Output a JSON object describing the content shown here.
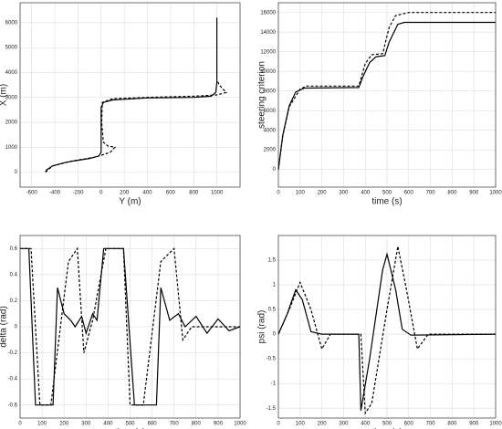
{
  "chart_data": [
    {
      "type": "line",
      "xlabel": "Y (m)",
      "ylabel": "X (m)",
      "xlim": [
        -700,
        1200
      ],
      "ylim": [
        -600,
        6800
      ],
      "xticks": [
        -600,
        -400,
        -200,
        0,
        200,
        400,
        600,
        800,
        1000
      ],
      "yticks": [
        0,
        1000,
        2000,
        3000,
        4000,
        5000,
        6000
      ],
      "grid": true,
      "series": [
        {
          "color": "#000000",
          "dashed": false,
          "x": [
            -480,
            -470,
            -420,
            -300,
            -100,
            -20,
            0,
            0,
            20,
            100,
            400,
            800,
            950,
            990,
            1000,
            1000
          ],
          "values": [
            0,
            100,
            250,
            400,
            550,
            650,
            800,
            2600,
            2800,
            2900,
            2980,
            3000,
            3050,
            3200,
            3600,
            6200
          ]
        },
        {
          "color": "#000000",
          "dashed": true,
          "x": [
            -480,
            -420,
            -250,
            -50,
            80,
            120,
            60,
            20,
            5,
            10,
            100,
            400,
            800,
            1000,
            1080,
            1020,
            1000
          ],
          "values": [
            0,
            250,
            450,
            600,
            800,
            1000,
            1050,
            1200,
            2000,
            2800,
            2950,
            3000,
            3050,
            3100,
            3200,
            3500,
            3700
          ]
        }
      ]
    },
    {
      "type": "line",
      "xlabel": "time (s)",
      "ylabel": "steering criterion",
      "xlim": [
        0,
        1000
      ],
      "ylim": [
        -1800,
        17000
      ],
      "xticks": [
        0,
        100,
        200,
        300,
        400,
        500,
        600,
        700,
        800,
        900,
        1000
      ],
      "yticks": [
        0,
        2000,
        4000,
        6000,
        8000,
        10000,
        12000,
        14000,
        16000
      ],
      "grid": true,
      "series": [
        {
          "color": "#000000",
          "dashed": false,
          "x": [
            0,
            20,
            50,
            80,
            120,
            370,
            390,
            420,
            450,
            490,
            510,
            550,
            580,
            1000
          ],
          "values": [
            0,
            3500,
            6500,
            7900,
            8300,
            8350,
            9500,
            10900,
            11500,
            11600,
            13000,
            14800,
            15000,
            15000
          ]
        },
        {
          "color": "#000000",
          "dashed": true,
          "x": [
            0,
            20,
            50,
            100,
            130,
            370,
            400,
            430,
            480,
            510,
            540,
            600,
            1000
          ],
          "values": [
            0,
            3400,
            6400,
            8200,
            8500,
            8500,
            10800,
            11700,
            11800,
            14500,
            15700,
            16000,
            16000
          ]
        }
      ]
    },
    {
      "type": "line",
      "xlabel": "time (s)",
      "ylabel": "delta (rad)",
      "xlim": [
        0,
        1000
      ],
      "ylim": [
        -0.7,
        0.7
      ],
      "xticks": [
        0,
        100,
        200,
        300,
        400,
        500,
        600,
        700,
        800,
        900,
        1000
      ],
      "yticks": [
        -0.6,
        -0.4,
        -0.2,
        0,
        0.2,
        0.4,
        0.6
      ],
      "grid": true,
      "series": [
        {
          "color": "#000000",
          "dashed": false,
          "x": [
            0,
            40,
            70,
            150,
            170,
            200,
            230,
            250,
            280,
            300,
            330,
            350,
            380,
            470,
            520,
            620,
            640,
            680,
            720,
            750,
            800,
            850,
            900,
            950,
            1000
          ],
          "values": [
            0.6,
            0.6,
            -0.6,
            -0.6,
            0.3,
            0.1,
            0.05,
            0,
            0.08,
            -0.05,
            0.1,
            0.05,
            0.6,
            0.6,
            -0.6,
            -0.6,
            0.3,
            0.05,
            0.1,
            0,
            0.08,
            -0.05,
            0.06,
            -0.03,
            0
          ]
        },
        {
          "color": "#000000",
          "dashed": true,
          "x": [
            0,
            50,
            90,
            140,
            220,
            260,
            290,
            330,
            390,
            470,
            500,
            560,
            640,
            700,
            740,
            780,
            1000
          ],
          "values": [
            0.6,
            0.6,
            -0.6,
            -0.6,
            0.5,
            0.6,
            -0.2,
            0.05,
            0.6,
            0.6,
            -0.6,
            -0.6,
            0.5,
            0.6,
            -0.1,
            0,
            0
          ]
        }
      ]
    },
    {
      "type": "line",
      "xlabel": "time (s)",
      "ylabel": "psi (rad)",
      "xlim": [
        0,
        1000
      ],
      "ylim": [
        -1.7,
        2
      ],
      "xticks": [
        0,
        100,
        200,
        300,
        400,
        500,
        600,
        700,
        800,
        900,
        1000
      ],
      "yticks": [
        -1.5,
        -1,
        -0.5,
        0,
        0.5,
        1,
        1.5
      ],
      "grid": true,
      "series": [
        {
          "color": "#000000",
          "dashed": false,
          "x": [
            0,
            40,
            80,
            110,
            150,
            200,
            370,
            380,
            420,
            480,
            500,
            540,
            570,
            610,
            1000
          ],
          "values": [
            0,
            0.4,
            0.9,
            0.7,
            0.05,
            0,
            0,
            -1.55,
            -0.5,
            1.3,
            1.62,
            0.9,
            0.1,
            -0.02,
            0
          ]
        },
        {
          "color": "#000000",
          "dashed": true,
          "x": [
            0,
            50,
            100,
            150,
            200,
            240,
            380,
            400,
            430,
            500,
            550,
            590,
            640,
            690,
            1000
          ],
          "values": [
            0,
            0.5,
            1.05,
            0.5,
            -0.3,
            0,
            0,
            -1.6,
            -1.4,
            0.5,
            1.78,
            0.9,
            -0.3,
            0,
            0
          ]
        }
      ]
    }
  ]
}
